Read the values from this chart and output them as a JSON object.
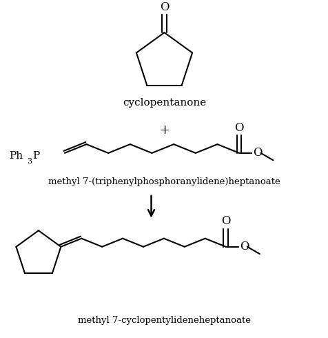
{
  "background_color": "#ffffff",
  "text_color": "#000000",
  "label_cyclopentanone": "cyclopentanone",
  "label_plus": "+",
  "label_reagent": "methyl 7-(triphenylphosphoranylidene)heptanoate",
  "label_product": "methyl 7-cyclopentylideneheptanoate",
  "font_size_labels": 11,
  "font_size_O": 12,
  "line_width": 1.5,
  "figsize": [
    4.77,
    4.9
  ],
  "dpi": 100
}
